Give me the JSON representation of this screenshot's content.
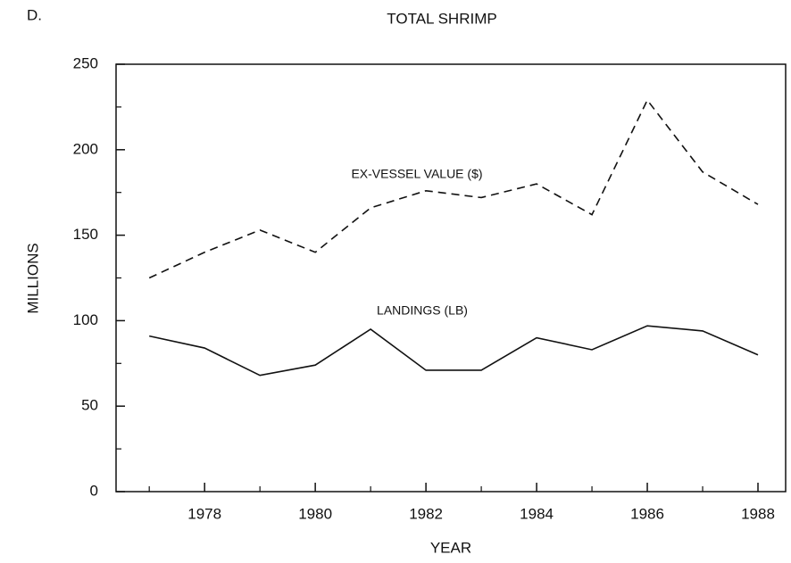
{
  "chart_data": {
    "type": "line",
    "panel": "D.",
    "title": "TOTAL SHRIMP",
    "x_label": "YEAR",
    "y_label": "MILLIONS",
    "x": [
      1977,
      1978,
      1979,
      1980,
      1981,
      1982,
      1983,
      1984,
      1985,
      1986,
      1987,
      1988
    ],
    "series": [
      {
        "name": "EX-VESSEL VALUE ($)",
        "color": "#111111",
        "dash": "dashed",
        "values": [
          125,
          140,
          153,
          140,
          166,
          176,
          172,
          180,
          162,
          229,
          187,
          168
        ]
      },
      {
        "name": "LANDINGS (LB)",
        "color": "#111111",
        "dash": "solid",
        "values": [
          91,
          84,
          68,
          74,
          95,
          71,
          71,
          90,
          83,
          97,
          94,
          80
        ]
      }
    ],
    "xlim": [
      1976.4,
      1988.5
    ],
    "ylim": [
      0,
      250
    ],
    "xticks": [
      1978,
      1980,
      1982,
      1984,
      1986,
      1988
    ],
    "xticks_minor": [
      1977,
      1979,
      1981,
      1983,
      1985,
      1987
    ],
    "yticks": [
      0,
      50,
      100,
      150,
      200,
      250
    ],
    "yticks_minor": [
      25,
      75,
      125,
      175,
      225
    ],
    "grid": false
  }
}
